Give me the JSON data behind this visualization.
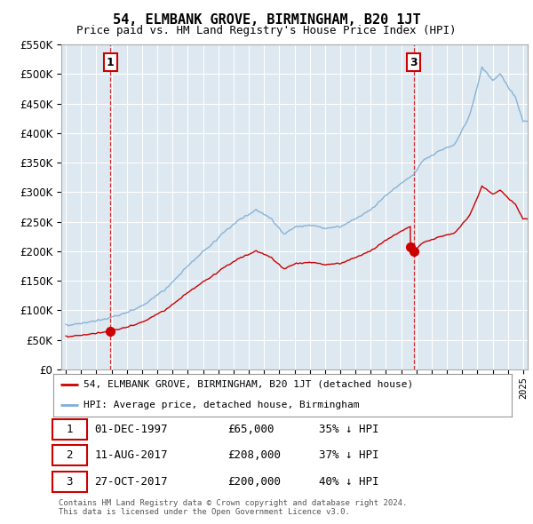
{
  "title": "54, ELMBANK GROVE, BIRMINGHAM, B20 1JT",
  "subtitle": "Price paid vs. HM Land Registry's House Price Index (HPI)",
  "ylim": [
    0,
    550000
  ],
  "yticks": [
    0,
    50000,
    100000,
    150000,
    200000,
    250000,
    300000,
    350000,
    400000,
    450000,
    500000,
    550000
  ],
  "xlim_start": 1994.7,
  "xlim_end": 2025.3,
  "sale_color": "#cc0000",
  "hpi_color": "#7eaed4",
  "sale_label": "54, ELMBANK GROVE, BIRMINGHAM, B20 1JT (detached house)",
  "hpi_label": "HPI: Average price, detached house, Birmingham",
  "transactions": [
    {
      "id": 1,
      "date": "01-DEC-1997",
      "price": 65000,
      "year": 1997.92,
      "pct": "35%",
      "dir": "↓"
    },
    {
      "id": 2,
      "date": "11-AUG-2017",
      "price": 208000,
      "year": 2017.61,
      "pct": "37%",
      "dir": "↓"
    },
    {
      "id": 3,
      "date": "27-OCT-2017",
      "price": 200000,
      "year": 2017.82,
      "pct": "40%",
      "dir": "↓"
    }
  ],
  "footnote1": "Contains HM Land Registry data © Crown copyright and database right 2024.",
  "footnote2": "This data is licensed under the Open Government Licence v3.0.",
  "background_color": "#ffffff",
  "plot_bg_color": "#dde8f0",
  "grid_color": "#ffffff",
  "title_fontsize": 11,
  "subtitle_fontsize": 9
}
